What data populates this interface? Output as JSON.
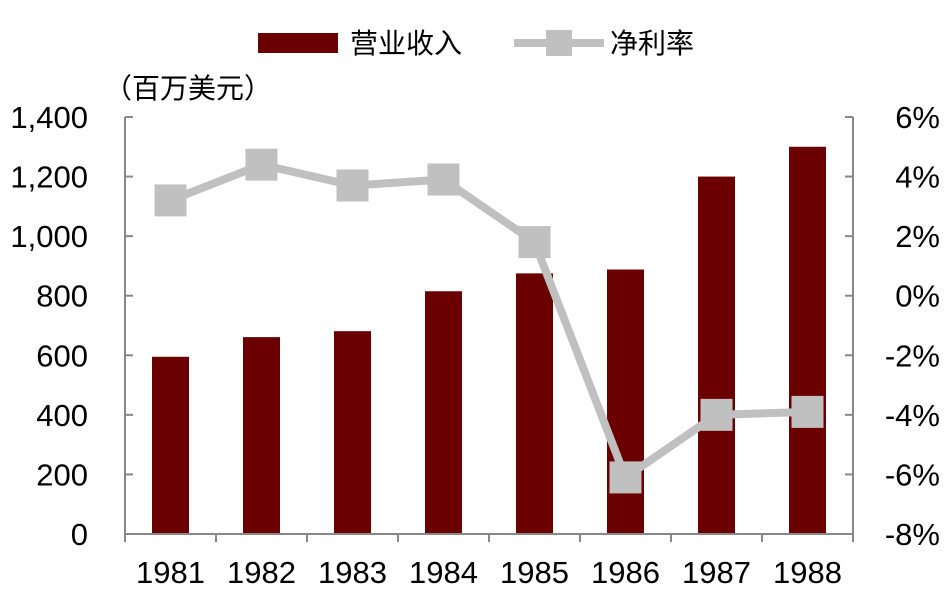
{
  "chart_data": {
    "type": "bar",
    "categories": [
      "1981",
      "1982",
      "1983",
      "1984",
      "1985",
      "1986",
      "1987",
      "1988"
    ],
    "series": [
      {
        "name": "营业收入",
        "type": "bar",
        "axis": "left",
        "color": "#6b0000",
        "values": [
          595,
          661,
          681,
          815,
          875,
          888,
          1200,
          1300
        ]
      },
      {
        "name": "净利率",
        "type": "line",
        "axis": "right",
        "color": "#c0c0c0",
        "values": [
          3.2,
          4.4,
          3.7,
          3.9,
          1.8,
          -6.1,
          -4.0,
          -3.9
        ]
      }
    ],
    "left_unit_label": "（百万美元）",
    "y_left": {
      "lim": [
        0,
        1400
      ],
      "ticks": [
        0,
        200,
        400,
        600,
        800,
        1000,
        1200,
        1400
      ],
      "tick_labels": [
        "0",
        "200",
        "400",
        "600",
        "800",
        "1,000",
        "1,200",
        "1,400"
      ]
    },
    "y_right": {
      "lim": [
        -8,
        6
      ],
      "ticks": [
        -8,
        -6,
        -4,
        -2,
        0,
        2,
        4,
        6
      ],
      "tick_labels": [
        "-8%",
        "-6%",
        "-4%",
        "-2%",
        "0%",
        "2%",
        "4%",
        "6%"
      ]
    },
    "legend_position": "top",
    "grid": false
  }
}
